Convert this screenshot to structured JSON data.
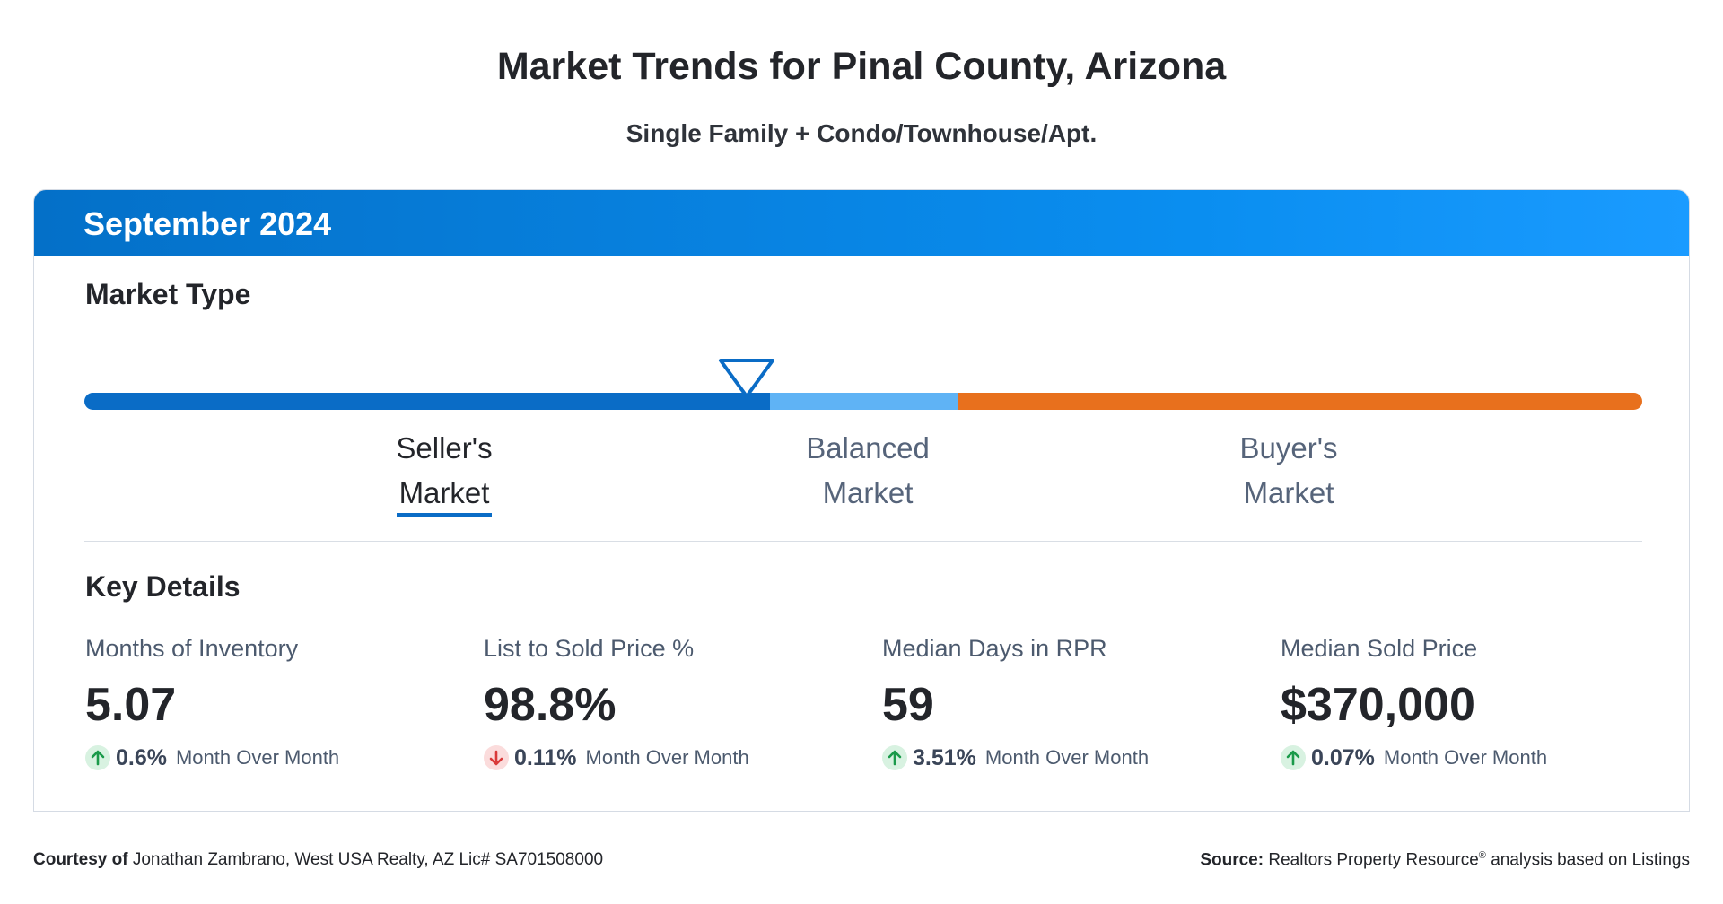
{
  "header": {
    "title": "Market Trends for Pinal County, Arizona",
    "subtitle": "Single Family + Condo/Townhouse/Apt."
  },
  "card": {
    "period": "September 2024",
    "market_type": {
      "heading": "Market Type",
      "labels": {
        "seller_line1": "Seller's",
        "seller_line2": "Market",
        "balanced_line1": "Balanced",
        "balanced_line2": "Market",
        "buyer_line1": "Buyer's",
        "buyer_line2": "Market"
      },
      "selected": "Seller's Market",
      "colors": {
        "seller": "#0a6cc6",
        "balanced": "#5fb3f5",
        "buyer": "#e8701d"
      }
    },
    "key_details": {
      "heading": "Key Details",
      "stats": [
        {
          "label": "Months of Inventory",
          "value": "5.07",
          "change": "0.6%",
          "direction": "up",
          "change_text": "Month Over Month"
        },
        {
          "label": "List to Sold Price %",
          "value": "98.8%",
          "change": "0.11%",
          "direction": "down",
          "change_text": "Month Over Month"
        },
        {
          "label": "Median Days in RPR",
          "value": "59",
          "change": "3.51%",
          "direction": "up",
          "change_text": "Month Over Month"
        },
        {
          "label": "Median Sold Price",
          "value": "$370,000",
          "change": "0.07%",
          "direction": "up",
          "change_text": "Month Over Month"
        }
      ],
      "colors": {
        "up": "#1a9a4a",
        "down": "#d93a3a"
      }
    }
  },
  "footer": {
    "courtesy_label": "Courtesy of",
    "courtesy_text": "Jonathan Zambrano, West USA Realty, AZ Lic# SA701508000",
    "source_label": "Source:",
    "source_name": "Realtors Property Resource",
    "source_mark": "®",
    "source_text": "analysis based on Listings"
  }
}
